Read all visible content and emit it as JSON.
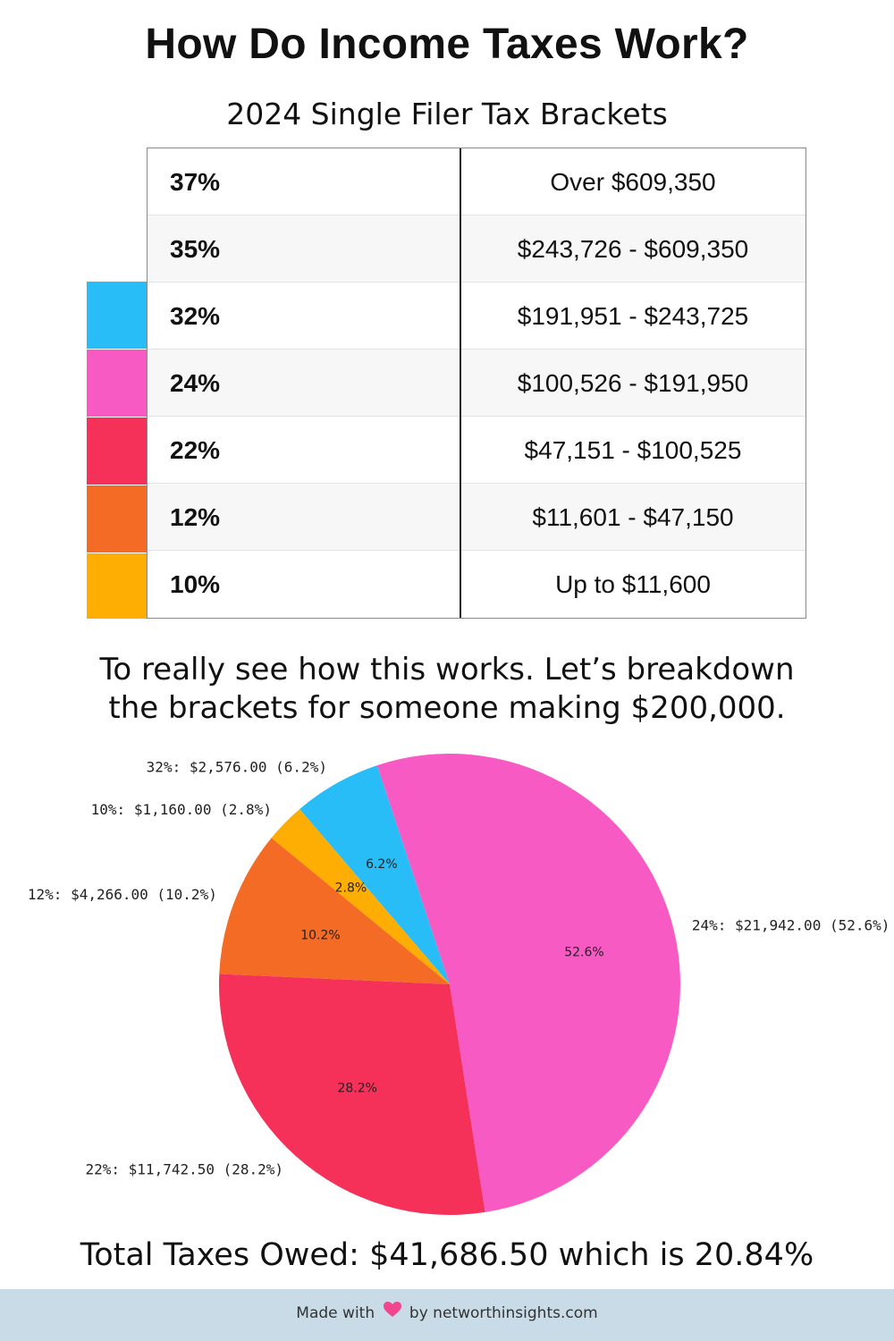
{
  "title": "How Do Income Taxes Work?",
  "subtitle": "2024 Single Filer Tax Brackets",
  "brackets": [
    {
      "rate": "37%",
      "range": "Over $609,350",
      "color": ""
    },
    {
      "rate": "35%",
      "range": "$243,726 - $609,350",
      "color": ""
    },
    {
      "rate": "32%",
      "range": "$191,951 - $243,725",
      "color": "#29BDF8"
    },
    {
      "rate": "24%",
      "range": "$100,526 - $191,950",
      "color": "#F75BC3"
    },
    {
      "rate": "22%",
      "range": "$47,151 - $100,525",
      "color": "#F53059"
    },
    {
      "rate": "12%",
      "range": "$11,601 - $47,150",
      "color": "#F36B24"
    },
    {
      "rate": "10%",
      "range": "Up to $11,600",
      "color": "#FEAD02"
    }
  ],
  "explanation": {
    "line1": "To really see how this works. Let’s breakdown",
    "line2": "the brackets for someone making $200,000."
  },
  "chart_data": {
    "type": "pie",
    "start_angle_deg": 90,
    "direction": "counterclockwise",
    "slices": [
      {
        "label": "32%",
        "value": 2576.0,
        "percent": 6.2,
        "outer_label": "32%: $2,576.00 (6.2%)",
        "inner_label": "6.2%",
        "color": "#29BDF8"
      },
      {
        "label": "10%",
        "value": 1160.0,
        "percent": 2.8,
        "outer_label": "10%: $1,160.00 (2.8%)",
        "inner_label": "2.8%",
        "color": "#FEAD02"
      },
      {
        "label": "12%",
        "value": 4266.0,
        "percent": 10.2,
        "outer_label": "12%: $4,266.00 (10.2%)",
        "inner_label": "10.2%",
        "color": "#F36B24"
      },
      {
        "label": "22%",
        "value": 11742.5,
        "percent": 28.2,
        "outer_label": "22%: $11,742.50 (28.2%)",
        "inner_label": "28.2%",
        "color": "#F53059"
      },
      {
        "label": "24%",
        "value": 21942.0,
        "percent": 52.6,
        "outer_label": "24%: $21,942.00 (52.6%)",
        "inner_label": "52.6%",
        "color": "#F75BC3"
      }
    ]
  },
  "total": {
    "label": "Total Taxes Owed:",
    "value": "$41,686.50 which is 20.84%"
  },
  "footer": {
    "made_with": "Made with",
    "by_text": "by networthinsights.com",
    "heart_color": "#F0468F"
  }
}
